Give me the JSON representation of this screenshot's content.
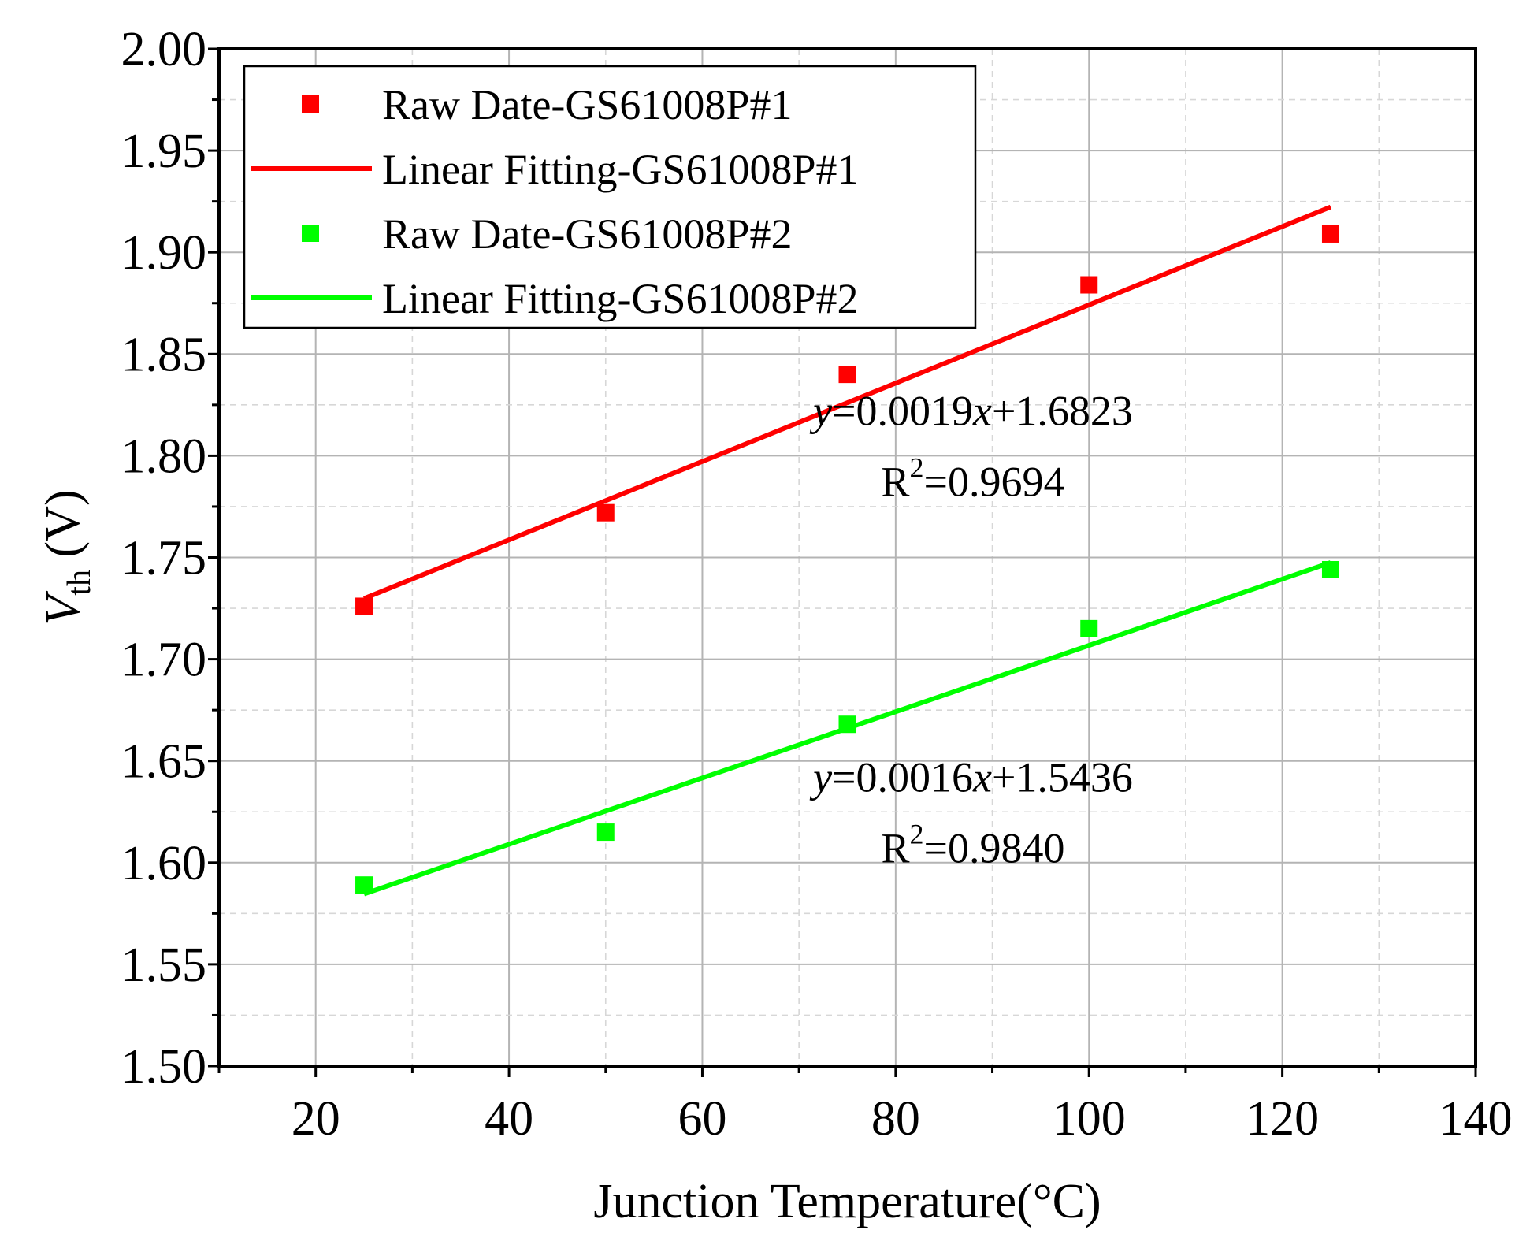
{
  "chart_data": {
    "type": "scatter",
    "title": "",
    "xlabel": "Junction Temperature(°C)",
    "ylabel": {
      "main": "V",
      "subscript": "th",
      "unit": " (V)"
    },
    "xlim": [
      10,
      140
    ],
    "ylim": [
      1.5,
      2.0
    ],
    "xticks": [
      20,
      40,
      60,
      80,
      100,
      120,
      140
    ],
    "xtick_labels": [
      "20",
      "40",
      "60",
      "80",
      "100",
      "120",
      "140"
    ],
    "yticks": [
      1.5,
      1.55,
      1.6,
      1.65,
      1.7,
      1.75,
      1.8,
      1.85,
      1.9,
      1.95,
      2.0
    ],
    "ytick_labels": [
      "1.50",
      "1.55",
      "1.60",
      "1.65",
      "1.70",
      "1.75",
      "1.80",
      "1.85",
      "1.90",
      "1.95",
      "2.00"
    ],
    "grid": true,
    "legend_position": "top-left",
    "series": [
      {
        "name": "Raw Date-GS61008P#1",
        "kind": "points",
        "color": "#ff0000",
        "x": [
          25,
          50,
          75,
          100,
          125
        ],
        "y": [
          1.726,
          1.772,
          1.84,
          1.884,
          1.909
        ]
      },
      {
        "name": "Linear Fitting-GS61008P#1",
        "kind": "line",
        "color": "#ff0000",
        "x": [
          25,
          125
        ],
        "y": [
          1.7298,
          1.9223
        ]
      },
      {
        "name": "Raw Date-GS61008P#2",
        "kind": "points",
        "color": "#00ff00",
        "x": [
          25,
          50,
          75,
          100,
          125
        ],
        "y": [
          1.589,
          1.615,
          1.668,
          1.715,
          1.744
        ]
      },
      {
        "name": "Linear Fitting-GS61008P#2",
        "kind": "line",
        "color": "#00ff00",
        "x": [
          25,
          125
        ],
        "y": [
          1.5846,
          1.7475
        ]
      }
    ],
    "annotations": [
      {
        "equation": {
          "y": "y",
          "mid": "=0.0019",
          "x": "x",
          "tail": "+1.6823"
        },
        "r2": {
          "base": "R",
          "exp": "2",
          "value": "=0.9694"
        },
        "anchor": [
          88,
          1.815
        ]
      },
      {
        "equation": {
          "y": "y",
          "mid": "=0.0016",
          "x": "x",
          "tail": "+1.5436"
        },
        "r2": {
          "base": "R",
          "exp": "2",
          "value": "=0.9840"
        },
        "anchor": [
          88,
          1.635
        ]
      }
    ]
  }
}
